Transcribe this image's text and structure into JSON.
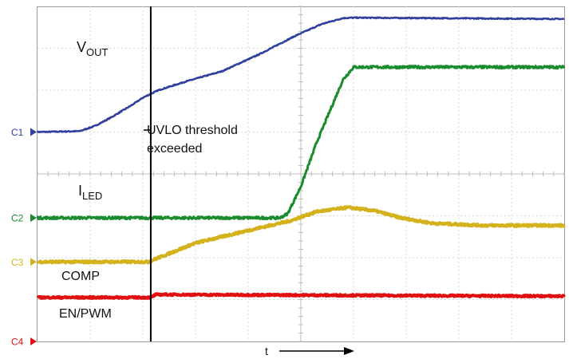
{
  "chart_data": {
    "type": "line",
    "grid": true,
    "x_divisions": 10,
    "y_divisions": 8,
    "xlim": [
      0,
      10
    ],
    "ylim": [
      0,
      8
    ],
    "xlabel": "t",
    "channels": [
      {
        "id": "C1",
        "color": "#2e3f9e",
        "ref_level": 5.0
      },
      {
        "id": "C2",
        "color": "#1a8c2e",
        "ref_level": 2.95
      },
      {
        "id": "C3",
        "color": "#d4b21e",
        "ref_level": 1.9
      },
      {
        "id": "C4",
        "color": "#e01010",
        "ref_level": 0.0
      }
    ],
    "series": [
      {
        "name": "VOUT",
        "channel": "C1",
        "color": "#2e3f9e",
        "x": [
          0,
          0.8,
          1.1,
          1.4,
          1.8,
          2.0,
          2.3,
          2.8,
          3.5,
          4.2,
          4.9,
          5.4,
          5.8,
          6.0,
          10
        ],
        "y": [
          5.0,
          5.02,
          5.15,
          5.35,
          5.65,
          5.82,
          6.0,
          6.2,
          6.45,
          6.85,
          7.3,
          7.58,
          7.72,
          7.73,
          7.7
        ]
      },
      {
        "name": "ILED",
        "channel": "C2",
        "color": "#1a8c2e",
        "x": [
          0,
          4.6,
          4.75,
          5.0,
          5.3,
          5.8,
          6.0,
          10
        ],
        "y": [
          2.95,
          2.95,
          3.05,
          3.7,
          4.75,
          6.25,
          6.55,
          6.55
        ]
      },
      {
        "name": "COMP",
        "channel": "C3",
        "color": "#d4b21e",
        "x": [
          0,
          2.1,
          2.5,
          3.0,
          4.0,
          4.8,
          5.3,
          5.9,
          6.4,
          6.9,
          7.5,
          8.5,
          10
        ],
        "y": [
          1.9,
          1.9,
          2.1,
          2.35,
          2.65,
          2.88,
          3.1,
          3.2,
          3.12,
          2.95,
          2.82,
          2.77,
          2.77
        ]
      },
      {
        "name": "EN/PWM",
        "channel": "C4",
        "color": "#e01010",
        "x": [
          0,
          2.15,
          2.25,
          10
        ],
        "y": [
          1.05,
          1.05,
          1.12,
          1.08
        ]
      }
    ],
    "annotations": {
      "vout": {
        "main": "V",
        "sub": "OUT"
      },
      "iled": {
        "main": "I",
        "sub": "LED"
      },
      "comp": "COMP",
      "enpwm": "EN/PWM",
      "uvlo_line1": "UVLO threshold",
      "uvlo_line2": "exceeded",
      "uvlo_marker_x": 2.15
    }
  }
}
